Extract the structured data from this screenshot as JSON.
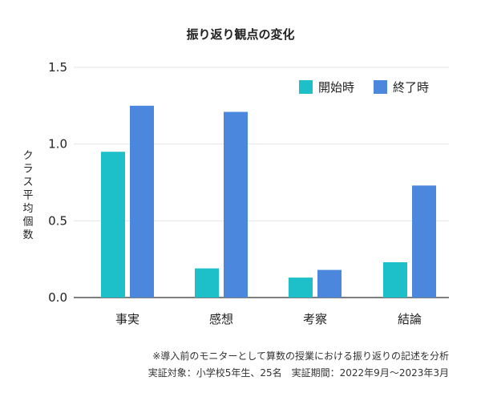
{
  "chart_data": {
    "type": "bar",
    "title": "振り返り観点の変化",
    "ylabel": "クラス平均個数",
    "categories": [
      "事実",
      "感想",
      "考察",
      "結論"
    ],
    "series": [
      {
        "name": "開始時",
        "values": [
          0.95,
          0.19,
          0.13,
          0.23
        ],
        "color": "#1dbfc8"
      },
      {
        "name": "終了時",
        "values": [
          1.25,
          1.21,
          0.18,
          0.73
        ],
        "color": "#4a87dd"
      }
    ],
    "ylim": [
      0,
      1.5
    ],
    "yticks": [
      "0.0",
      "0.5",
      "1.0",
      "1.5"
    ],
    "grid": true,
    "legend": "top-right"
  },
  "notes": {
    "line1": "※導入前のモニターとして算数の授業における振り返りの記述を分析",
    "line2": "実証対象：小学校5年生、25名　実証期間：2022年9月〜2023年3月"
  }
}
